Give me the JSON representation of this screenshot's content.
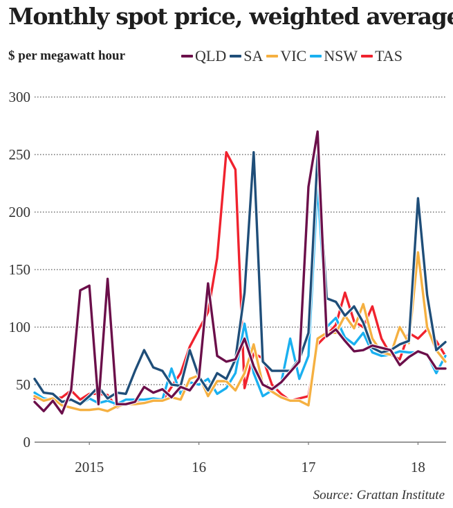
{
  "chart_data": {
    "type": "line",
    "title": "Monthly spot price, weighted average",
    "ylabel": "$ per megawatt hour",
    "xlabel": "",
    "source": "Source: Grattan Institute",
    "ylim": [
      0,
      300
    ],
    "yticks": [
      0,
      50,
      100,
      150,
      200,
      250,
      300
    ],
    "grid": true,
    "legend_position": "top",
    "x_start": "2014-07",
    "x_end": "2018-04",
    "xticks": [
      {
        "label": "2015",
        "month_index": 6
      },
      {
        "label": "16",
        "month_index": 18
      },
      {
        "label": "17",
        "month_index": 30
      },
      {
        "label": "18",
        "month_index": 42
      }
    ],
    "x": [
      "2014-07",
      "2014-08",
      "2014-09",
      "2014-10",
      "2014-11",
      "2014-12",
      "2015-01",
      "2015-02",
      "2015-03",
      "2015-04",
      "2015-05",
      "2015-06",
      "2015-07",
      "2015-08",
      "2015-09",
      "2015-10",
      "2015-11",
      "2015-12",
      "2016-01",
      "2016-02",
      "2016-03",
      "2016-04",
      "2016-05",
      "2016-06",
      "2016-07",
      "2016-08",
      "2016-09",
      "2016-10",
      "2016-11",
      "2016-12",
      "2017-01",
      "2017-02",
      "2017-03",
      "2017-04",
      "2017-05",
      "2017-06",
      "2017-07",
      "2017-08",
      "2017-09",
      "2017-10",
      "2017-11",
      "2017-12",
      "2018-01",
      "2018-02",
      "2018-03",
      "2018-04"
    ],
    "series": [
      {
        "name": "QLD",
        "color": "#6b0f4a",
        "values": [
          35,
          27,
          36,
          25,
          45,
          132,
          136,
          33,
          142,
          33,
          33,
          35,
          48,
          43,
          46,
          39,
          48,
          45,
          56,
          138,
          75,
          70,
          72,
          90,
          66,
          50,
          46,
          52,
          61,
          70,
          222,
          270,
          92,
          98,
          88,
          79,
          80,
          84,
          82,
          80,
          67,
          74,
          79,
          76,
          64,
          64
        ]
      },
      {
        "name": "SA",
        "color": "#1f4e79",
        "values": [
          55,
          43,
          42,
          35,
          37,
          33,
          40,
          48,
          38,
          43,
          42,
          62,
          80,
          65,
          62,
          50,
          49,
          80,
          57,
          45,
          60,
          55,
          72,
          130,
          252,
          70,
          62,
          62,
          62,
          72,
          95,
          250,
          125,
          122,
          110,
          118,
          104,
          82,
          78,
          80,
          85,
          88,
          212,
          128,
          80,
          87
        ]
      },
      {
        "name": "VIC",
        "color": "#f5b041",
        "values": [
          40,
          36,
          38,
          32,
          30,
          28,
          28,
          29,
          27,
          31,
          33,
          33,
          34,
          36,
          36,
          39,
          37,
          55,
          58,
          40,
          53,
          53,
          45,
          60,
          85,
          50,
          44,
          39,
          36,
          36,
          32,
          90,
          95,
          95,
          110,
          99,
          120,
          90,
          78,
          76,
          100,
          86,
          165,
          100,
          80,
          70
        ]
      },
      {
        "name": "NSW",
        "color": "#1ab0f0",
        "values": [
          43,
          38,
          37,
          35,
          37,
          33,
          38,
          34,
          36,
          33,
          37,
          37,
          37,
          38,
          37,
          64,
          42,
          52,
          50,
          55,
          42,
          47,
          60,
          103,
          60,
          40,
          45,
          51,
          90,
          55,
          75,
          225,
          100,
          108,
          91,
          85,
          95,
          78,
          75,
          76,
          79,
          78,
          78,
          76,
          60,
          75
        ]
      },
      {
        "name": "TAS",
        "color": "#f0222e",
        "values": [
          38,
          38,
          38,
          39,
          45,
          37,
          42,
          42,
          41,
          30,
          33,
          35,
          36,
          38,
          36,
          48,
          60,
          83,
          98,
          113,
          160,
          252,
          237,
          47,
          77,
          73,
          50,
          42,
          36,
          38,
          40,
          85,
          93,
          102,
          130,
          105,
          100,
          118,
          90,
          76,
          72,
          95,
          90,
          98,
          88,
          75
        ]
      }
    ]
  }
}
